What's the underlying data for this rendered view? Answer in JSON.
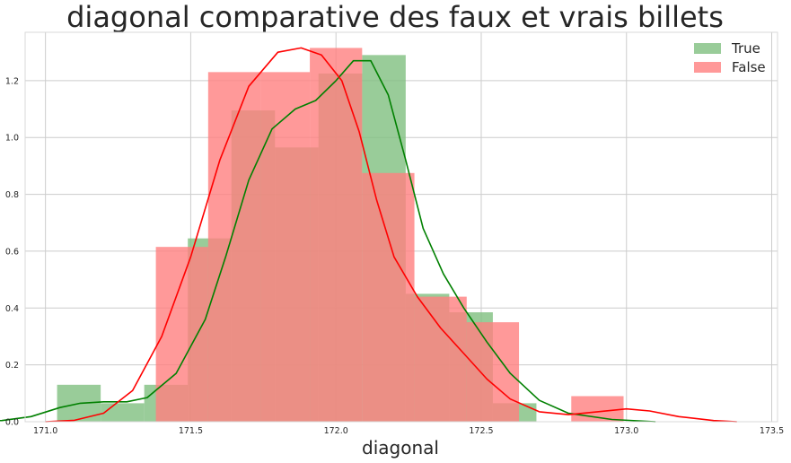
{
  "chart_data": {
    "type": "histogram",
    "title": "diagonal comparative des faux et vrais billets",
    "xlabel": "diagonal",
    "ylabel": "",
    "xlim": [
      170.93,
      173.52
    ],
    "ylim": [
      0,
      1.37
    ],
    "xticks": [
      171.0,
      171.5,
      172.0,
      172.5,
      173.0,
      173.5
    ],
    "xtick_labels": [
      "171.0",
      "171.5",
      "172.0",
      "172.5",
      "173.0",
      "173.5"
    ],
    "yticks": [
      0.0,
      0.2,
      0.4,
      0.6,
      0.8,
      1.0,
      1.2
    ],
    "ytick_labels": [
      "0.0",
      "0.2",
      "0.4",
      "0.6",
      "0.8",
      "1.0",
      "1.2"
    ],
    "grid": true,
    "legend_position": "upper right",
    "series": [
      {
        "name": "True",
        "color": "#008000",
        "bar_color": "#7fbf7f",
        "bar_opacity": 0.8,
        "bins": [
          {
            "x0": 171.04,
            "x1": 171.19,
            "value": 0.13
          },
          {
            "x0": 171.19,
            "x1": 171.34,
            "value": 0.065
          },
          {
            "x0": 171.34,
            "x1": 171.49,
            "value": 0.13
          },
          {
            "x0": 171.49,
            "x1": 171.64,
            "value": 0.645
          },
          {
            "x0": 171.64,
            "x1": 171.79,
            "value": 1.095
          },
          {
            "x0": 171.79,
            "x1": 171.94,
            "value": 0.965
          },
          {
            "x0": 171.94,
            "x1": 172.09,
            "value": 1.225
          },
          {
            "x0": 172.09,
            "x1": 172.24,
            "value": 1.29
          },
          {
            "x0": 172.24,
            "x1": 172.39,
            "value": 0.45
          },
          {
            "x0": 172.39,
            "x1": 172.54,
            "value": 0.385
          },
          {
            "x0": 172.54,
            "x1": 172.69,
            "value": 0.065
          }
        ],
        "kde": [
          [
            170.7,
            0.0
          ],
          [
            170.85,
            0.004
          ],
          [
            170.95,
            0.018
          ],
          [
            171.05,
            0.05
          ],
          [
            171.12,
            0.065
          ],
          [
            171.2,
            0.07
          ],
          [
            171.28,
            0.07
          ],
          [
            171.35,
            0.085
          ],
          [
            171.45,
            0.17
          ],
          [
            171.55,
            0.36
          ],
          [
            171.62,
            0.58
          ],
          [
            171.7,
            0.85
          ],
          [
            171.78,
            1.03
          ],
          [
            171.86,
            1.1
          ],
          [
            171.93,
            1.13
          ],
          [
            172.0,
            1.2
          ],
          [
            172.06,
            1.27
          ],
          [
            172.12,
            1.27
          ],
          [
            172.18,
            1.15
          ],
          [
            172.24,
            0.92
          ],
          [
            172.3,
            0.68
          ],
          [
            172.37,
            0.52
          ],
          [
            172.44,
            0.4
          ],
          [
            172.52,
            0.28
          ],
          [
            172.6,
            0.17
          ],
          [
            172.7,
            0.075
          ],
          [
            172.8,
            0.03
          ],
          [
            172.95,
            0.008
          ],
          [
            173.1,
            0.0
          ]
        ]
      },
      {
        "name": "False",
        "color": "#ff0000",
        "bar_color": "#ff7f7f",
        "bar_opacity": 0.8,
        "bins": [
          {
            "x0": 171.38,
            "x1": 171.56,
            "value": 0.615
          },
          {
            "x0": 171.56,
            "x1": 171.74,
            "value": 1.23
          },
          {
            "x0": 171.74,
            "x1": 171.91,
            "value": 1.23
          },
          {
            "x0": 171.91,
            "x1": 172.09,
            "value": 1.315
          },
          {
            "x0": 172.09,
            "x1": 172.27,
            "value": 0.875
          },
          {
            "x0": 172.27,
            "x1": 172.45,
            "value": 0.44
          },
          {
            "x0": 172.45,
            "x1": 172.63,
            "value": 0.35
          },
          {
            "x0": 172.63,
            "x1": 172.81,
            "value": 0.0
          },
          {
            "x0": 172.81,
            "x1": 172.99,
            "value": 0.09
          }
        ],
        "kde": [
          [
            171.0,
            0.0
          ],
          [
            171.1,
            0.005
          ],
          [
            171.2,
            0.03
          ],
          [
            171.3,
            0.11
          ],
          [
            171.4,
            0.3
          ],
          [
            171.5,
            0.58
          ],
          [
            171.6,
            0.92
          ],
          [
            171.7,
            1.18
          ],
          [
            171.8,
            1.3
          ],
          [
            171.88,
            1.315
          ],
          [
            171.95,
            1.29
          ],
          [
            172.02,
            1.2
          ],
          [
            172.08,
            1.02
          ],
          [
            172.14,
            0.78
          ],
          [
            172.2,
            0.58
          ],
          [
            172.28,
            0.44
          ],
          [
            172.36,
            0.33
          ],
          [
            172.44,
            0.24
          ],
          [
            172.52,
            0.15
          ],
          [
            172.6,
            0.08
          ],
          [
            172.7,
            0.035
          ],
          [
            172.8,
            0.025
          ],
          [
            172.9,
            0.035
          ],
          [
            173.0,
            0.045
          ],
          [
            173.08,
            0.038
          ],
          [
            173.18,
            0.018
          ],
          [
            173.3,
            0.004
          ],
          [
            173.38,
            0.0
          ]
        ]
      }
    ]
  }
}
